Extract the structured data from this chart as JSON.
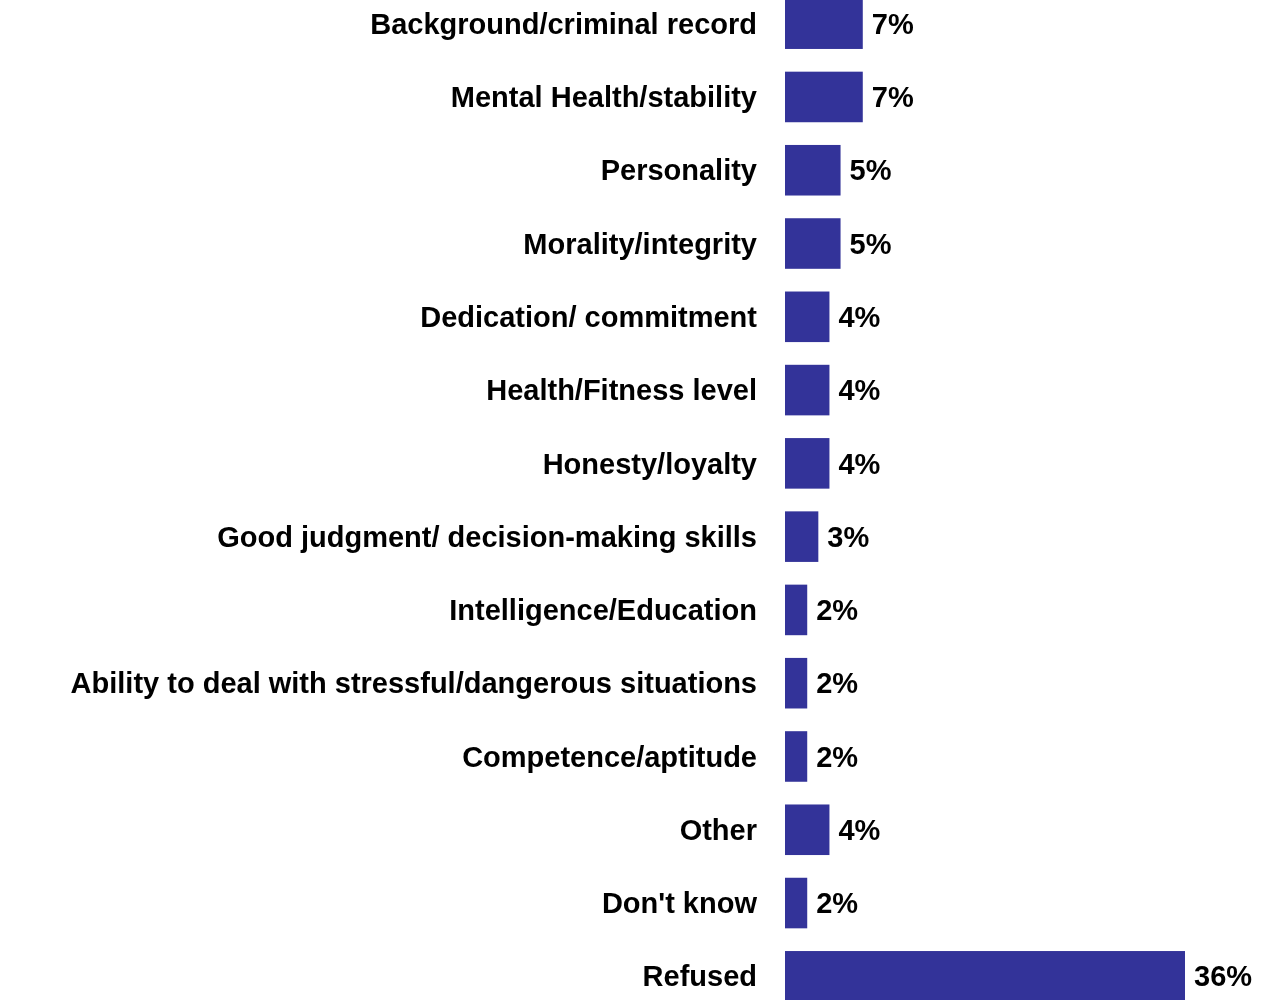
{
  "chart_data": {
    "type": "bar",
    "orientation": "horizontal",
    "color": "#333399",
    "categories": [
      "Background/criminal record",
      "Mental Health/stability",
      "Personality",
      "Morality/integrity",
      "Dedication/ commitment",
      "Health/Fitness level",
      "Honesty/loyalty",
      "Good judgment/ decision-making skills",
      "Intelligence/Education",
      "Ability to deal with stressful/dangerous situations",
      "Competence/aptitude",
      "Other",
      "Don't know",
      "Refused"
    ],
    "values": [
      7,
      7,
      5,
      5,
      4,
      4,
      4,
      3,
      2,
      2,
      2,
      4,
      2,
      36
    ],
    "value_labels": [
      "7%",
      "7%",
      "5%",
      "5%",
      "4%",
      "4%",
      "4%",
      "3%",
      "2%",
      "2%",
      "2%",
      "4%",
      "2%",
      "36%"
    ]
  }
}
